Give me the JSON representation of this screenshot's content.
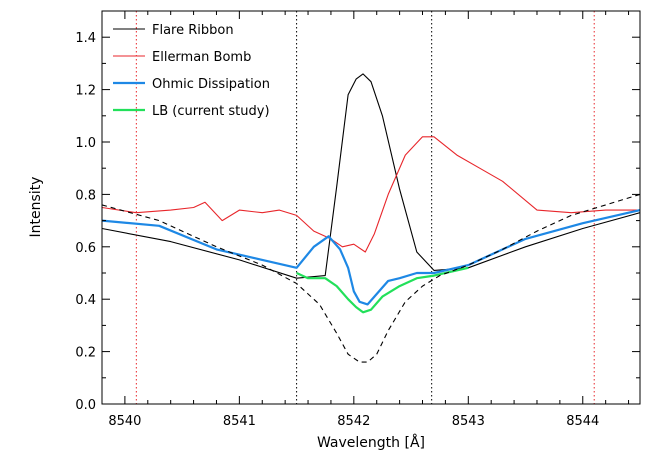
{
  "chart_data": {
    "type": "line",
    "title": "",
    "xlabel": "Wavelength [Å]",
    "ylabel": "Intensity",
    "xlim": [
      8539.8,
      8544.5
    ],
    "ylim": [
      0.0,
      1.5
    ],
    "x_ticks": [
      8540,
      8541,
      8542,
      8543,
      8544
    ],
    "y_ticks": [
      0.0,
      0.2,
      0.4,
      0.6,
      0.8,
      1.0,
      1.2,
      1.4
    ],
    "x_tick_labels": [
      "8540",
      "8541",
      "8542",
      "8543",
      "8544"
    ],
    "y_tick_labels": [
      "0.0",
      "0.2",
      "0.4",
      "0.6",
      "0.8",
      "1.0",
      "1.2",
      "1.4"
    ],
    "grid": false,
    "legend_position": "top-left",
    "series": [
      {
        "name": "Flare Ribbon",
        "color": "#000000",
        "style": "solid",
        "x": [
          8539.8,
          8540.4,
          8541.0,
          8541.5,
          8541.75,
          8541.85,
          8541.95,
          8542.02,
          8542.08,
          8542.15,
          8542.25,
          8542.4,
          8542.55,
          8542.7,
          8543.0,
          8543.5,
          8544.0,
          8544.5
        ],
        "y": [
          0.67,
          0.62,
          0.55,
          0.48,
          0.49,
          0.83,
          1.18,
          1.24,
          1.26,
          1.23,
          1.1,
          0.82,
          0.58,
          0.51,
          0.52,
          0.6,
          0.67,
          0.73
        ]
      },
      {
        "name": "Ellerman Bomb",
        "color": "#e8262b",
        "style": "solid",
        "x": [
          8539.8,
          8540.1,
          8540.4,
          8540.6,
          8540.7,
          8540.85,
          8541.0,
          8541.2,
          8541.35,
          8541.5,
          8541.65,
          8541.8,
          8541.9,
          8542.0,
          8542.1,
          8542.18,
          8542.3,
          8542.45,
          8542.6,
          8542.7,
          8542.9,
          8543.1,
          8543.3,
          8543.6,
          8543.9,
          8544.2,
          8544.5
        ],
        "y": [
          0.75,
          0.73,
          0.74,
          0.75,
          0.77,
          0.7,
          0.74,
          0.73,
          0.74,
          0.72,
          0.66,
          0.63,
          0.6,
          0.61,
          0.58,
          0.65,
          0.8,
          0.95,
          1.02,
          1.02,
          0.95,
          0.9,
          0.85,
          0.74,
          0.73,
          0.74,
          0.74
        ]
      },
      {
        "name": "Ohmic Dissipation",
        "color": "#1e88e5",
        "style": "solid",
        "x": [
          8539.8,
          8540.3,
          8540.8,
          8541.2,
          8541.5,
          8541.65,
          8541.78,
          8541.88,
          8541.95,
          8542.0,
          8542.05,
          8542.12,
          8542.2,
          8542.3,
          8542.4,
          8542.55,
          8542.7,
          8543.0,
          8543.5,
          8544.0,
          8544.5
        ],
        "y": [
          0.7,
          0.68,
          0.59,
          0.55,
          0.52,
          0.6,
          0.64,
          0.59,
          0.52,
          0.43,
          0.39,
          0.38,
          0.42,
          0.47,
          0.48,
          0.5,
          0.5,
          0.53,
          0.63,
          0.69,
          0.74
        ]
      },
      {
        "name": "LB (current study)",
        "color": "#22e05a",
        "style": "solid",
        "x": [
          8541.5,
          8541.6,
          8541.75,
          8541.85,
          8541.95,
          8542.02,
          8542.08,
          8542.15,
          8542.25,
          8542.4,
          8542.55,
          8542.7,
          8543.0
        ],
        "y": [
          0.5,
          0.48,
          0.48,
          0.45,
          0.4,
          0.37,
          0.35,
          0.36,
          0.41,
          0.45,
          0.48,
          0.49,
          0.52
        ]
      },
      {
        "name": "",
        "color": "#000000",
        "style": "dashed",
        "x": [
          8539.8,
          8540.3,
          8540.8,
          8541.2,
          8541.5,
          8541.7,
          8541.85,
          8541.95,
          8542.05,
          8542.12,
          8542.2,
          8542.3,
          8542.45,
          8542.6,
          8542.75,
          8543.0,
          8543.3,
          8543.6,
          8543.9,
          8544.2,
          8544.5
        ],
        "y": [
          0.76,
          0.7,
          0.6,
          0.53,
          0.46,
          0.38,
          0.27,
          0.19,
          0.16,
          0.16,
          0.19,
          0.28,
          0.39,
          0.45,
          0.49,
          0.53,
          0.59,
          0.66,
          0.72,
          0.76,
          0.8
        ]
      }
    ],
    "vertical_lines": [
      {
        "x": 8540.1,
        "color": "#e8262b",
        "style": "dotted"
      },
      {
        "x": 8541.5,
        "color": "#000000",
        "style": "dotted"
      },
      {
        "x": 8542.68,
        "color": "#000000",
        "style": "dotted"
      },
      {
        "x": 8544.1,
        "color": "#e8262b",
        "style": "dotted"
      }
    ]
  }
}
